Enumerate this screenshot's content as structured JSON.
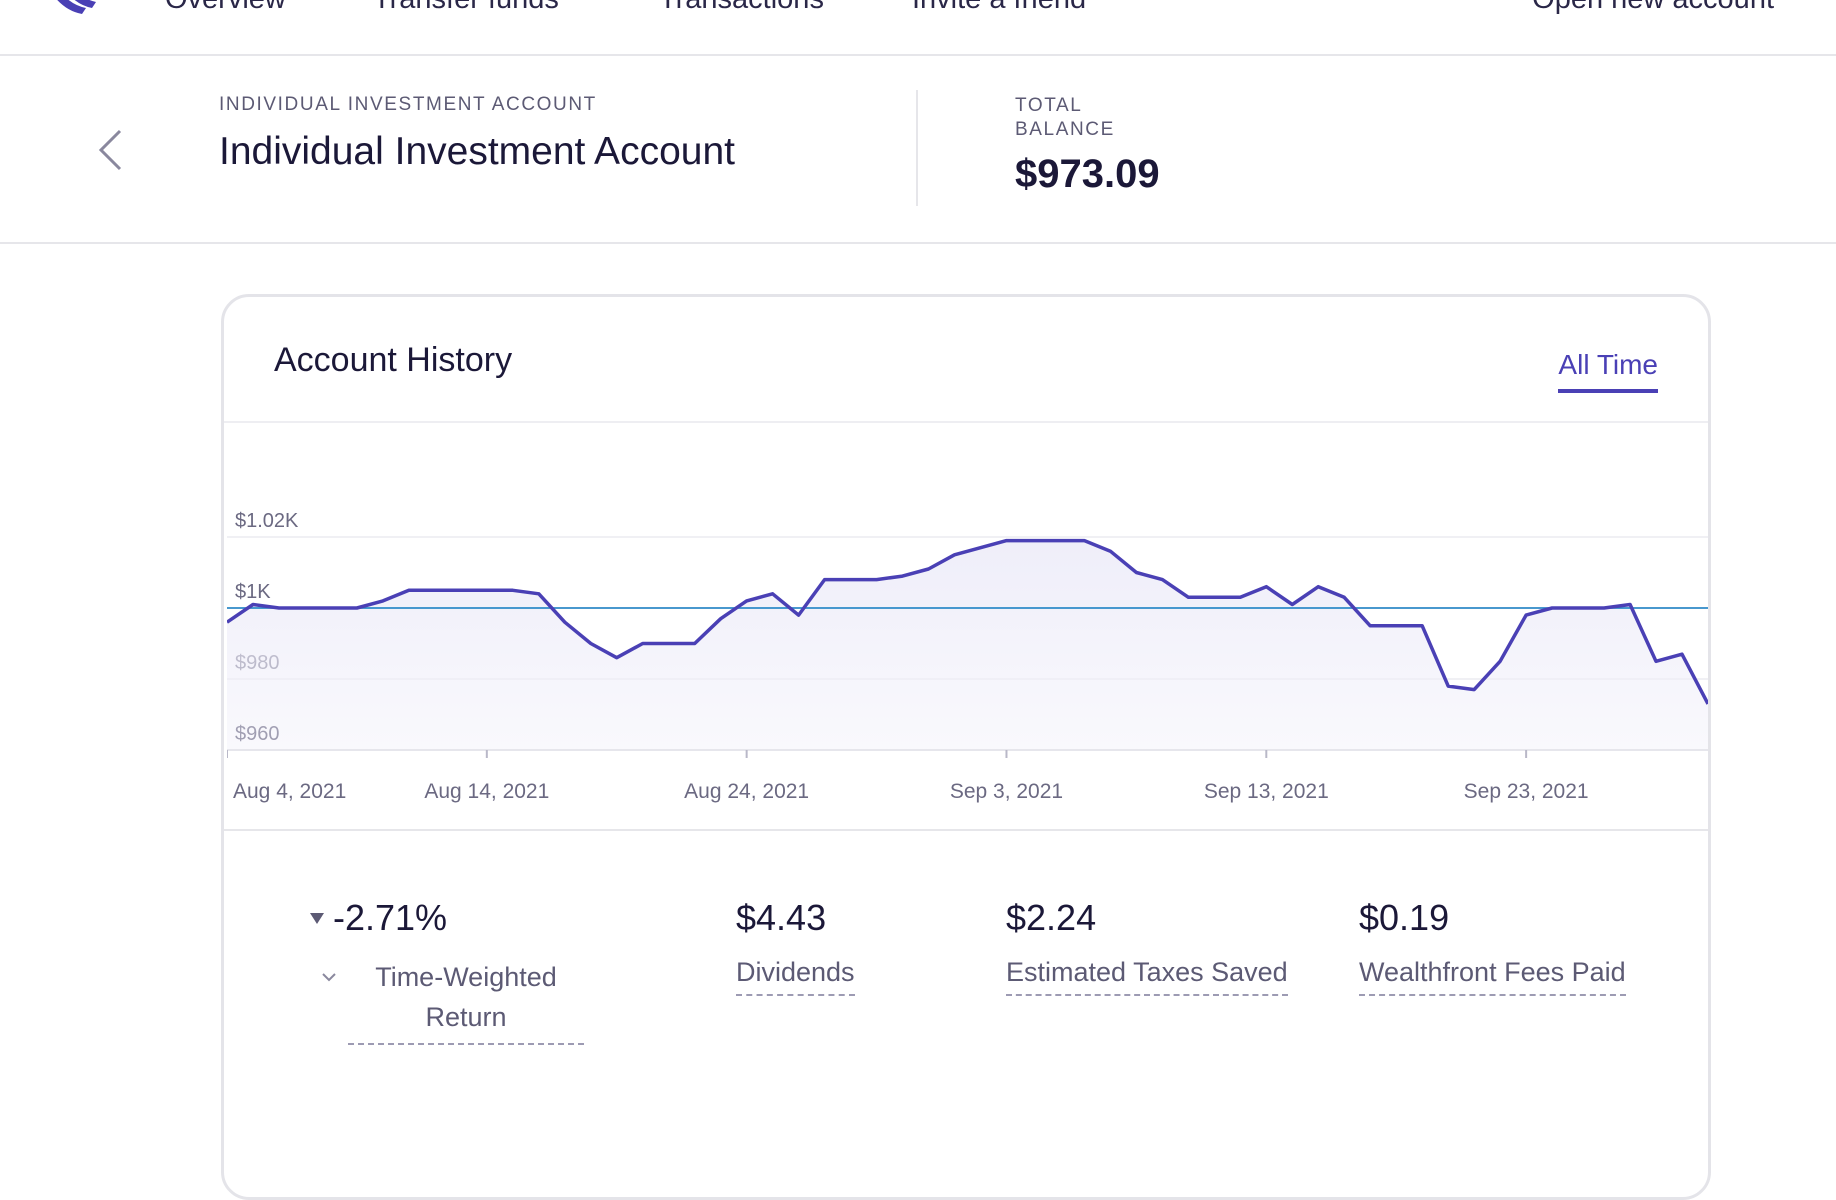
{
  "nav": {
    "items": [
      "Overview",
      "Transfer funds",
      "Transactions",
      "Invite a friend"
    ],
    "right": "Open new account"
  },
  "account": {
    "type_label": "INDIVIDUAL INVESTMENT ACCOUNT",
    "name": "Individual Investment Account",
    "balance_label": "TOTAL BALANCE",
    "balance": "$973.09"
  },
  "card": {
    "title": "Account History",
    "range": "All Time"
  },
  "chart_data": {
    "type": "area",
    "title": "Account History",
    "y_ticks": [
      "$1.02K",
      "$1K",
      "$980",
      "$960"
    ],
    "y_tick_values": [
      1020,
      1000,
      980,
      960
    ],
    "x_tick_labels": [
      "Aug 4, 2021",
      "Aug 14, 2021",
      "Aug 24, 2021",
      "Sep 3, 2021",
      "Sep 13, 2021",
      "Sep 23, 2021"
    ],
    "xlim_days": [
      0,
      57
    ],
    "ylim": [
      960,
      1040
    ],
    "reference_line": 1000,
    "grid": true,
    "colors": {
      "line": "#4a40b5",
      "reference": "#2f8bc9",
      "fill": "#efeef9"
    },
    "series": [
      {
        "x": [
          0,
          1,
          2,
          3,
          4,
          5,
          6,
          7,
          8,
          9,
          10,
          11,
          12,
          13,
          14,
          15,
          16,
          17,
          18,
          19,
          20,
          21,
          22,
          23,
          24,
          25,
          26,
          27,
          28,
          29,
          30,
          31,
          32,
          33,
          34,
          35,
          36,
          37,
          38,
          39,
          40,
          41,
          42,
          43,
          44,
          45,
          46,
          47,
          48,
          49,
          50,
          51,
          52,
          53,
          54,
          55,
          56,
          57
        ],
        "values": [
          996,
          1001,
          1000,
          1000,
          1000,
          1000,
          1002,
          1005,
          1005,
          1005,
          1005,
          1005,
          1004,
          996,
          990,
          986,
          990,
          990,
          990,
          997,
          1002,
          1004,
          998,
          1008,
          1008,
          1008,
          1009,
          1011,
          1015,
          1017,
          1019,
          1019,
          1019,
          1019,
          1016,
          1010,
          1008,
          1003,
          1003,
          1003,
          1006,
          1001,
          1006,
          1003,
          995,
          995,
          995,
          978,
          977,
          985,
          998,
          1000,
          1000,
          1000,
          1001,
          985,
          987,
          973
        ]
      }
    ]
  },
  "stats": [
    {
      "value": "-2.71%",
      "label": "Time-Weighted Return"
    },
    {
      "value": "$4.43",
      "label": "Dividends"
    },
    {
      "value": "$2.24",
      "label": "Estimated Taxes Saved"
    },
    {
      "value": "$0.19",
      "label": "Wealthfront Fees Paid"
    }
  ]
}
